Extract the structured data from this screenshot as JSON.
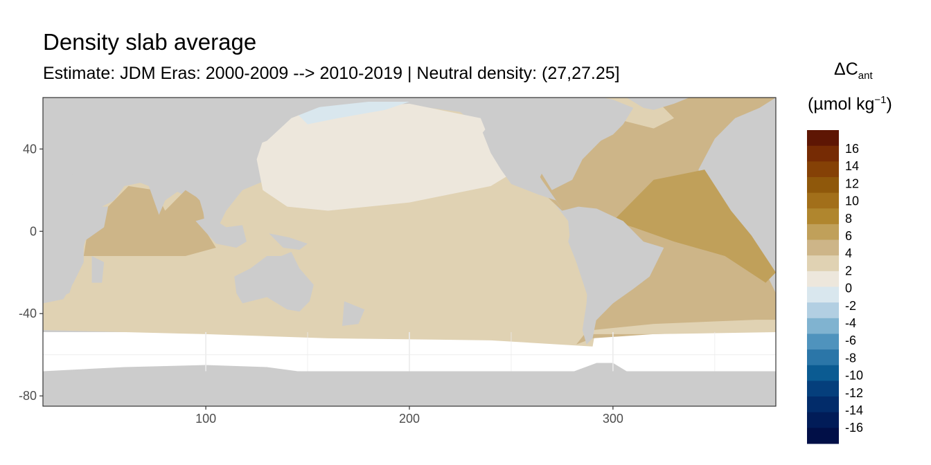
{
  "title": "Density slab average",
  "subtitle": "Estimate: JDM Eras: 2000-2009 --> 2010-2019 | Neutral density: (27,27.25]",
  "legend": {
    "title_line1_main": "ΔC",
    "title_line1_sub": "ant",
    "title_line2_open": "(µmol kg",
    "title_line2_sup": "−1",
    "title_line2_close": ")",
    "labels": [
      "16",
      "14",
      "12",
      "10",
      "8",
      "6",
      "4",
      "2",
      "0",
      "-2",
      "-4",
      "-6",
      "-8",
      "-10",
      "-12",
      "-14",
      "-16"
    ],
    "colors": [
      "#5e1604",
      "#762b04",
      "#854106",
      "#8f580b",
      "#a26f1a",
      "#b0862e",
      "#c0a05a",
      "#cdb588",
      "#e0d2b3",
      "#ede7dc",
      "#d9e7ee",
      "#b2cfe2",
      "#80b3d0",
      "#4f93bd",
      "#2b76a8",
      "#0b5b92",
      "#053f7c",
      "#022c6a",
      "#011c58",
      "#010f47"
    ]
  },
  "map": {
    "x_ticks": [
      100,
      200,
      300
    ],
    "y_ticks": [
      40,
      0,
      -40,
      -80
    ],
    "x_range": [
      20,
      380
    ],
    "y_range": [
      -85,
      65
    ],
    "colors": {
      "land": "#cccccc",
      "no_data": "#ffffff",
      "panel_border": "#333333",
      "grid": "#ebebeb",
      "c_neg": "#d9e7ee",
      "c0_2": "#ede7dc",
      "c2_4": "#e0d2b3",
      "c4_6": "#cdb588",
      "c6_8": "#c0a05a"
    }
  }
}
